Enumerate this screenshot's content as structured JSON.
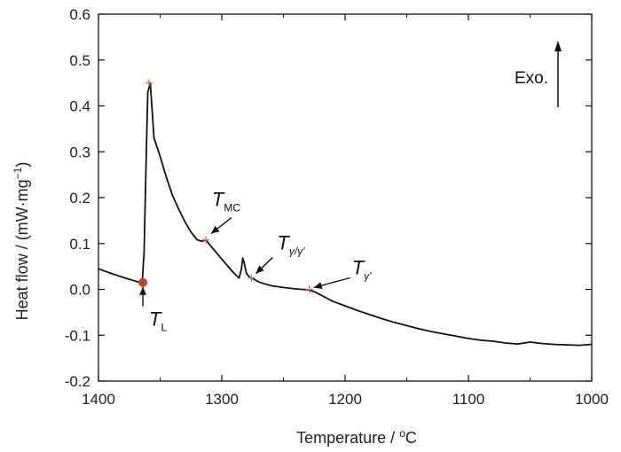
{
  "chart_data": {
    "type": "line",
    "title": "",
    "xlabel": "Temperature / °C",
    "xlabel_text": "Temperature / ",
    "xlabel_unit_sup": "o",
    "xlabel_unit": "C",
    "ylabel_main": "Heat flow / (mW·mg",
    "ylabel_sup": "−1",
    "ylabel_close": ")",
    "xlim": [
      1400,
      1000
    ],
    "x_reversed": true,
    "ylim": [
      -0.2,
      0.6
    ],
    "xticks": [
      1400,
      1300,
      1200,
      1100,
      1000
    ],
    "xtick_labels": [
      "1400",
      "1300",
      "1200",
      "1100",
      "1000"
    ],
    "yticks": [
      -0.2,
      -0.1,
      0.0,
      0.1,
      0.2,
      0.3,
      0.4,
      0.5,
      0.6
    ],
    "ytick_labels": [
      "-0.2",
      "-0.1",
      "0.0",
      "0.1",
      "0.2",
      "0.3",
      "0.4",
      "0.5",
      "0.6"
    ],
    "grid": false,
    "line_color": "#111111",
    "marker_color": "#e87040",
    "series": [
      {
        "x": [
          1400,
          1390,
          1380,
          1370,
          1366,
          1364.5,
          1363,
          1362,
          1361,
          1360,
          1358,
          1355,
          1350,
          1345,
          1340,
          1335,
          1330,
          1325,
          1320,
          1316,
          1313,
          1310,
          1305,
          1300,
          1295,
          1290,
          1288,
          1286,
          1284,
          1283,
          1282,
          1280,
          1277,
          1275,
          1270,
          1265,
          1260,
          1250,
          1240,
          1230,
          1225,
          1220,
          1210,
          1200,
          1190,
          1180,
          1170,
          1160,
          1150,
          1140,
          1130,
          1120,
          1110,
          1100,
          1090,
          1080,
          1070,
          1060,
          1050,
          1040,
          1030,
          1020,
          1010,
          1000
        ],
        "y": [
          0.045,
          0.035,
          0.026,
          0.018,
          0.015,
          0.015,
          0.08,
          0.2,
          0.32,
          0.43,
          0.45,
          0.33,
          0.29,
          0.245,
          0.205,
          0.175,
          0.148,
          0.125,
          0.108,
          0.105,
          0.108,
          0.098,
          0.082,
          0.066,
          0.05,
          0.035,
          0.03,
          0.025,
          0.045,
          0.068,
          0.06,
          0.035,
          0.025,
          0.024,
          0.016,
          0.012,
          0.008,
          0.004,
          0.001,
          -0.001,
          -0.005,
          -0.012,
          -0.026,
          -0.036,
          -0.046,
          -0.055,
          -0.064,
          -0.072,
          -0.079,
          -0.086,
          -0.092,
          -0.097,
          -0.102,
          -0.107,
          -0.111,
          -0.113,
          -0.117,
          -0.119,
          -0.115,
          -0.118,
          -0.12,
          -0.121,
          -0.122,
          -0.12
        ]
      }
    ],
    "markers": [
      {
        "x": 1364,
        "y": 0.015,
        "kind": "dot"
      },
      {
        "x": 1359,
        "y": 0.45,
        "kind": "plus"
      },
      {
        "x": 1313,
        "y": 0.108,
        "kind": "plus"
      },
      {
        "x": 1276,
        "y": 0.025,
        "kind": "plus"
      },
      {
        "x": 1229,
        "y": 0.0,
        "kind": "plus"
      }
    ],
    "annotations": [
      {
        "main": "T",
        "sub": "L",
        "x": 1364,
        "y": 0.015,
        "arrow": "up"
      },
      {
        "main": "T",
        "sub": "MC",
        "x": 1313,
        "y": 0.108
      },
      {
        "main": "T",
        "sub": "γ/γ'",
        "x": 1276,
        "y": 0.025
      },
      {
        "main": "T",
        "sub": "γ'",
        "x": 1229,
        "y": 0.0
      }
    ],
    "exo_label": "Exo."
  }
}
